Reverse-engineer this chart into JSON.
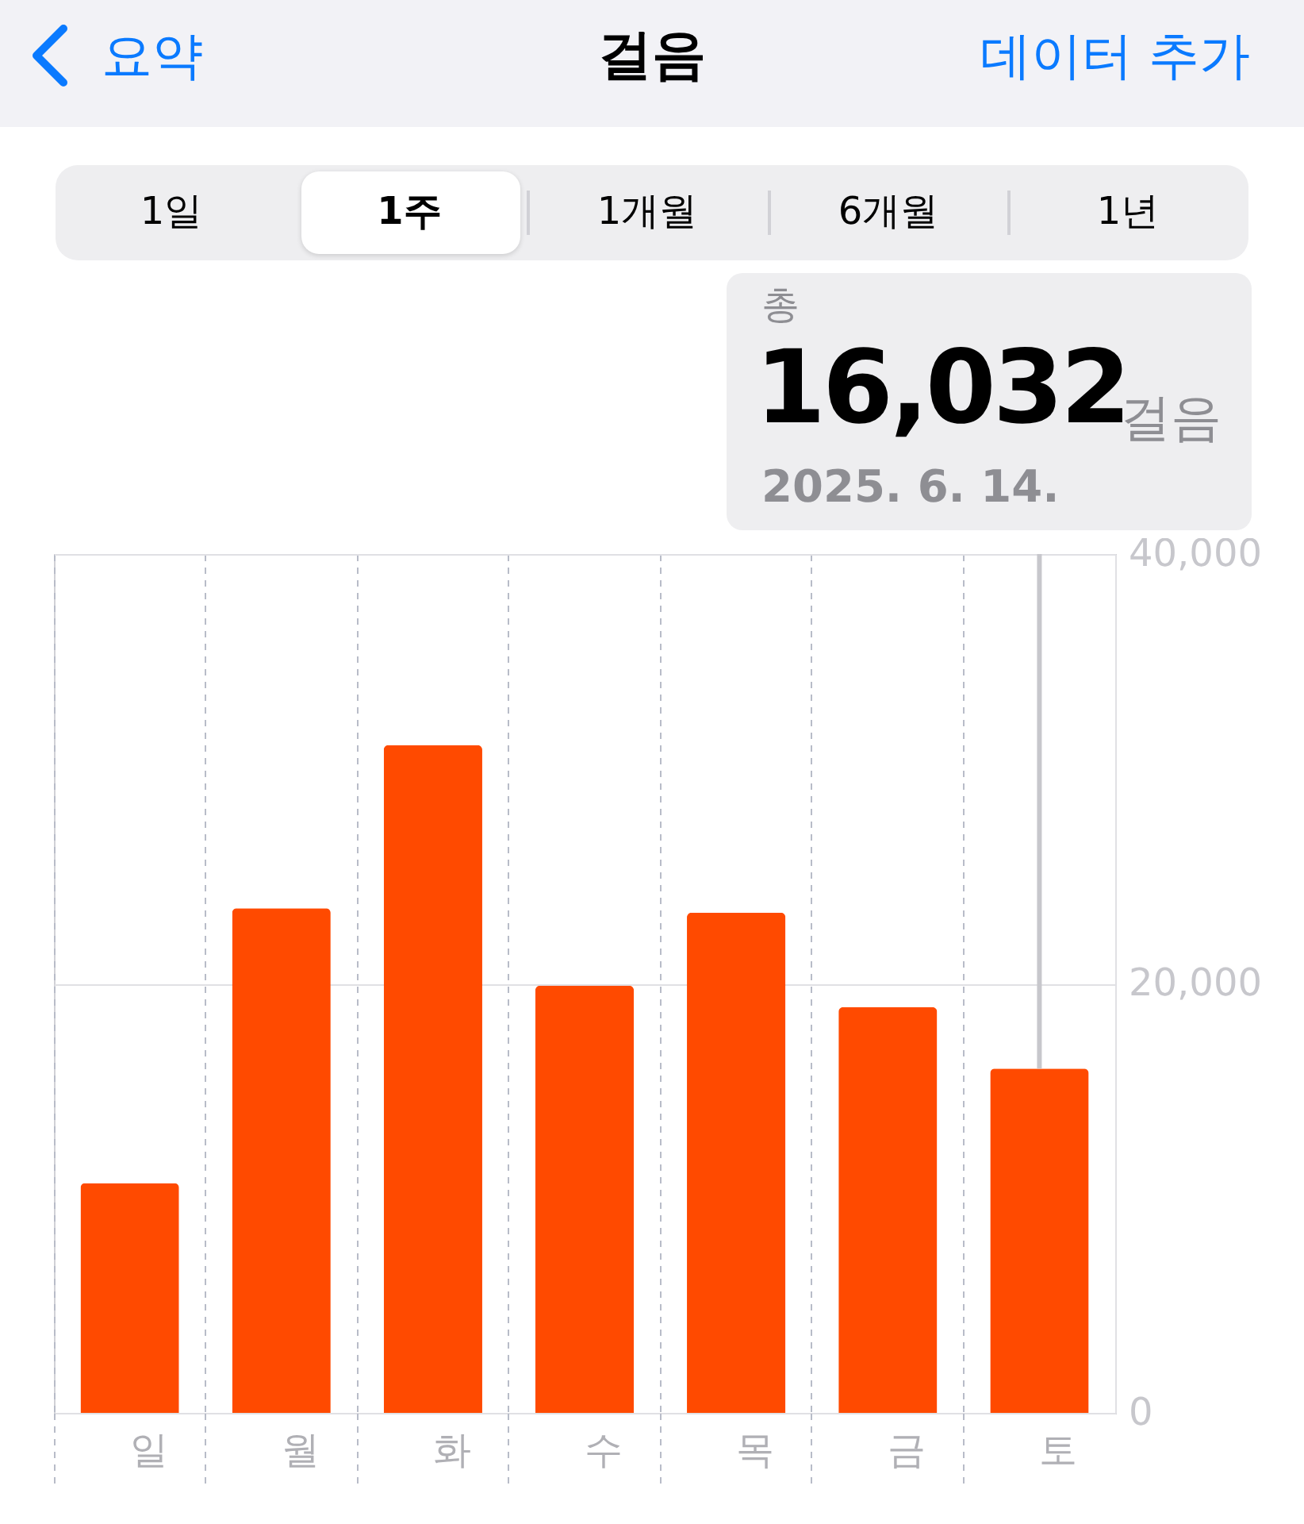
{
  "chart_data": {
    "type": "bar",
    "title": "걸음",
    "annotations": [
      "요약",
      "데이터 추가",
      "1일",
      "1주",
      "1개월",
      "6개월",
      "1년",
      "총",
      "16,032",
      "걸음",
      "2025. 6. 14."
    ],
    "categories": [
      "일",
      "월",
      "화",
      "수",
      "목",
      "금",
      "토"
    ],
    "values": [
      10700,
      23500,
      31100,
      19900,
      23300,
      18900,
      16032
    ],
    "color": "#ff4a00",
    "ylim": [
      0,
      40000
    ],
    "yticks": [
      0,
      {
        "value": 20000,
        "label": "20,000"
      },
      {
        "value": 40000,
        "label": "40,000"
      }
    ],
    "grid": true
  }
}
